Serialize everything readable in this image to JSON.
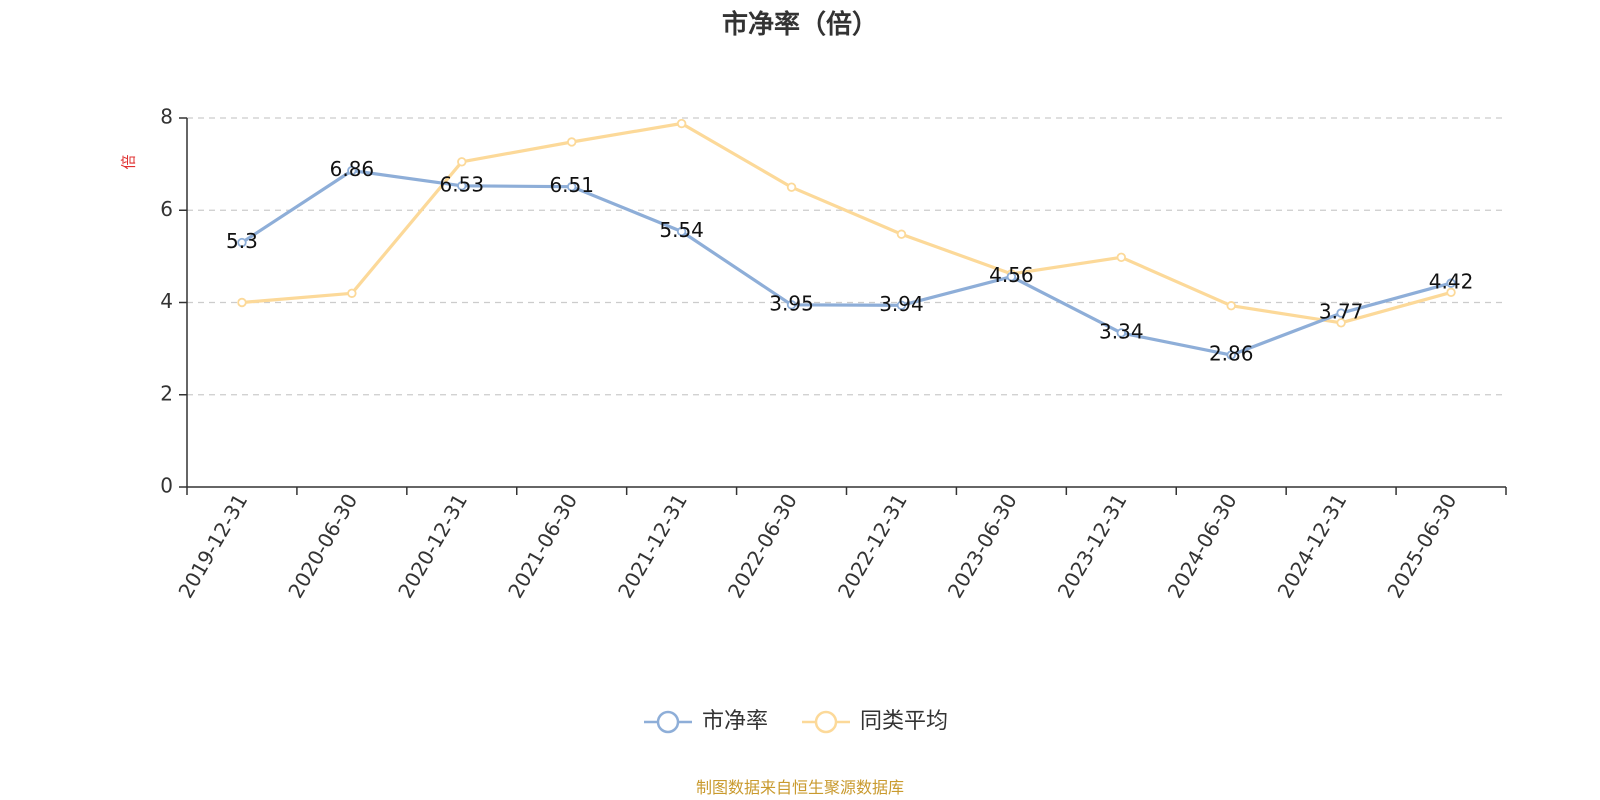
{
  "chart_data": {
    "type": "line",
    "title": "市净率（倍）",
    "ylabel": "倍",
    "xlabel": "",
    "ylim": [
      0,
      8
    ],
    "yticks": [
      0,
      2,
      4,
      6,
      8
    ],
    "grid": true,
    "legend_position": "bottom-center",
    "categories": [
      "2019-12-31",
      "2020-06-30",
      "2020-12-31",
      "2021-06-30",
      "2021-12-31",
      "2022-06-30",
      "2022-12-31",
      "2023-06-30",
      "2023-12-31",
      "2024-06-30",
      "2024-12-31",
      "2025-06-30"
    ],
    "series": [
      {
        "name": "市净率",
        "color": "#8eaed8",
        "show_labels": true,
        "values": [
          5.3,
          6.86,
          6.53,
          6.51,
          5.54,
          3.95,
          3.94,
          4.56,
          3.34,
          2.86,
          3.77,
          4.42
        ]
      },
      {
        "name": "同类平均",
        "color": "#fcd999",
        "show_labels": false,
        "values": [
          4.0,
          4.2,
          7.05,
          7.48,
          7.88,
          6.5,
          5.48,
          4.62,
          4.98,
          3.93,
          3.56,
          4.22
        ]
      }
    ]
  },
  "colors": {
    "unit_label": "#e03030",
    "source": "#c99a2e",
    "axis": "#333333",
    "grid": "#cccccc"
  },
  "source_text": "制图数据来自恒生聚源数据库"
}
